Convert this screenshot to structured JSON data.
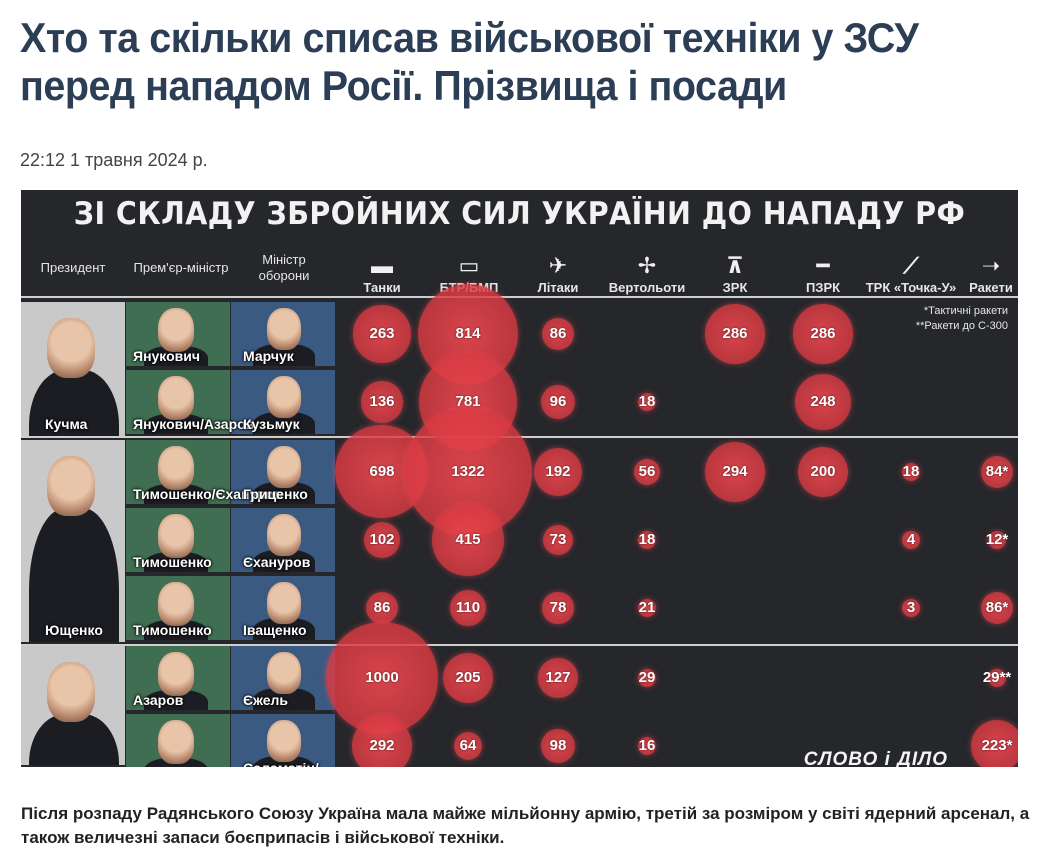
{
  "article": {
    "headline": "Хто та скільки списав військової техніки у ЗСУ перед нападом Росії. Прізвища і посади",
    "date": "22:12 1 травня 2024 р.",
    "lead": "Після розпаду Радянського Союзу Україна мала майже мільйонну армію, третій за розміром у світі ядерний арсенал, а також величезні запаси боєприпасів і військової техніки."
  },
  "infographic": {
    "title": "ЗІ СКЛАДУ ЗБРОЙНИХ СИЛ УКРАЇНИ ДО НАПАДУ РФ",
    "headers": {
      "president": "Президент",
      "pm": "Прем'єр-міністр",
      "defmin": "Міністр оборони",
      "tanks": "Танки",
      "apc": "БТР/БМП",
      "planes": "Літаки",
      "heli": "Вертольоти",
      "sam": "ЗРК",
      "manpads": "ПЗРК",
      "trk": "ТРК «Точка-У»",
      "missiles": "Ракети"
    },
    "notes": [
      "*Тактичні ракети",
      "**Ракети до С-300"
    ],
    "brand": "СЛОВО і ДІЛО",
    "presidents": [
      "Кучма",
      "Ющенко"
    ],
    "rows": [
      {
        "pm": "Янукович",
        "defmin": "Марчук",
        "tanks": "263",
        "apc": "814",
        "planes": "86",
        "heli": "",
        "sam": "286",
        "manpads": "286",
        "trk": "",
        "missiles": ""
      },
      {
        "pm": "Янукович/Азаров",
        "defmin": "Кузьмук",
        "tanks": "136",
        "apc": "781",
        "planes": "96",
        "heli": "18",
        "sam": "",
        "manpads": "248",
        "trk": "",
        "missiles": ""
      },
      {
        "pm": "Тимошенко/Єхануров",
        "defmin": "Гриценко",
        "tanks": "698",
        "apc": "1322",
        "planes": "192",
        "heli": "56",
        "sam": "294",
        "manpads": "200",
        "trk": "18",
        "missiles": "84*"
      },
      {
        "pm": "Тимошенко",
        "defmin": "Єхануров",
        "tanks": "102",
        "apc": "415",
        "planes": "73",
        "heli": "18",
        "sam": "",
        "manpads": "",
        "trk": "4",
        "missiles": "12*"
      },
      {
        "pm": "Тимошенко",
        "defmin": "Іващенко",
        "tanks": "86",
        "apc": "110",
        "planes": "78",
        "heli": "21",
        "sam": "",
        "manpads": "",
        "trk": "3",
        "missiles": "86*"
      },
      {
        "pm": "Азаров",
        "defmin": "Єжель",
        "tanks": "1000",
        "apc": "205",
        "planes": "127",
        "heli": "29",
        "sam": "",
        "manpads": "",
        "trk": "",
        "missiles": "29**"
      },
      {
        "pm": "",
        "defmin": "Саламатін/",
        "tanks": "292",
        "apc": "64",
        "planes": "98",
        "heli": "16",
        "sam": "",
        "manpads": "",
        "trk": "",
        "missiles": "223*"
      }
    ]
  }
}
